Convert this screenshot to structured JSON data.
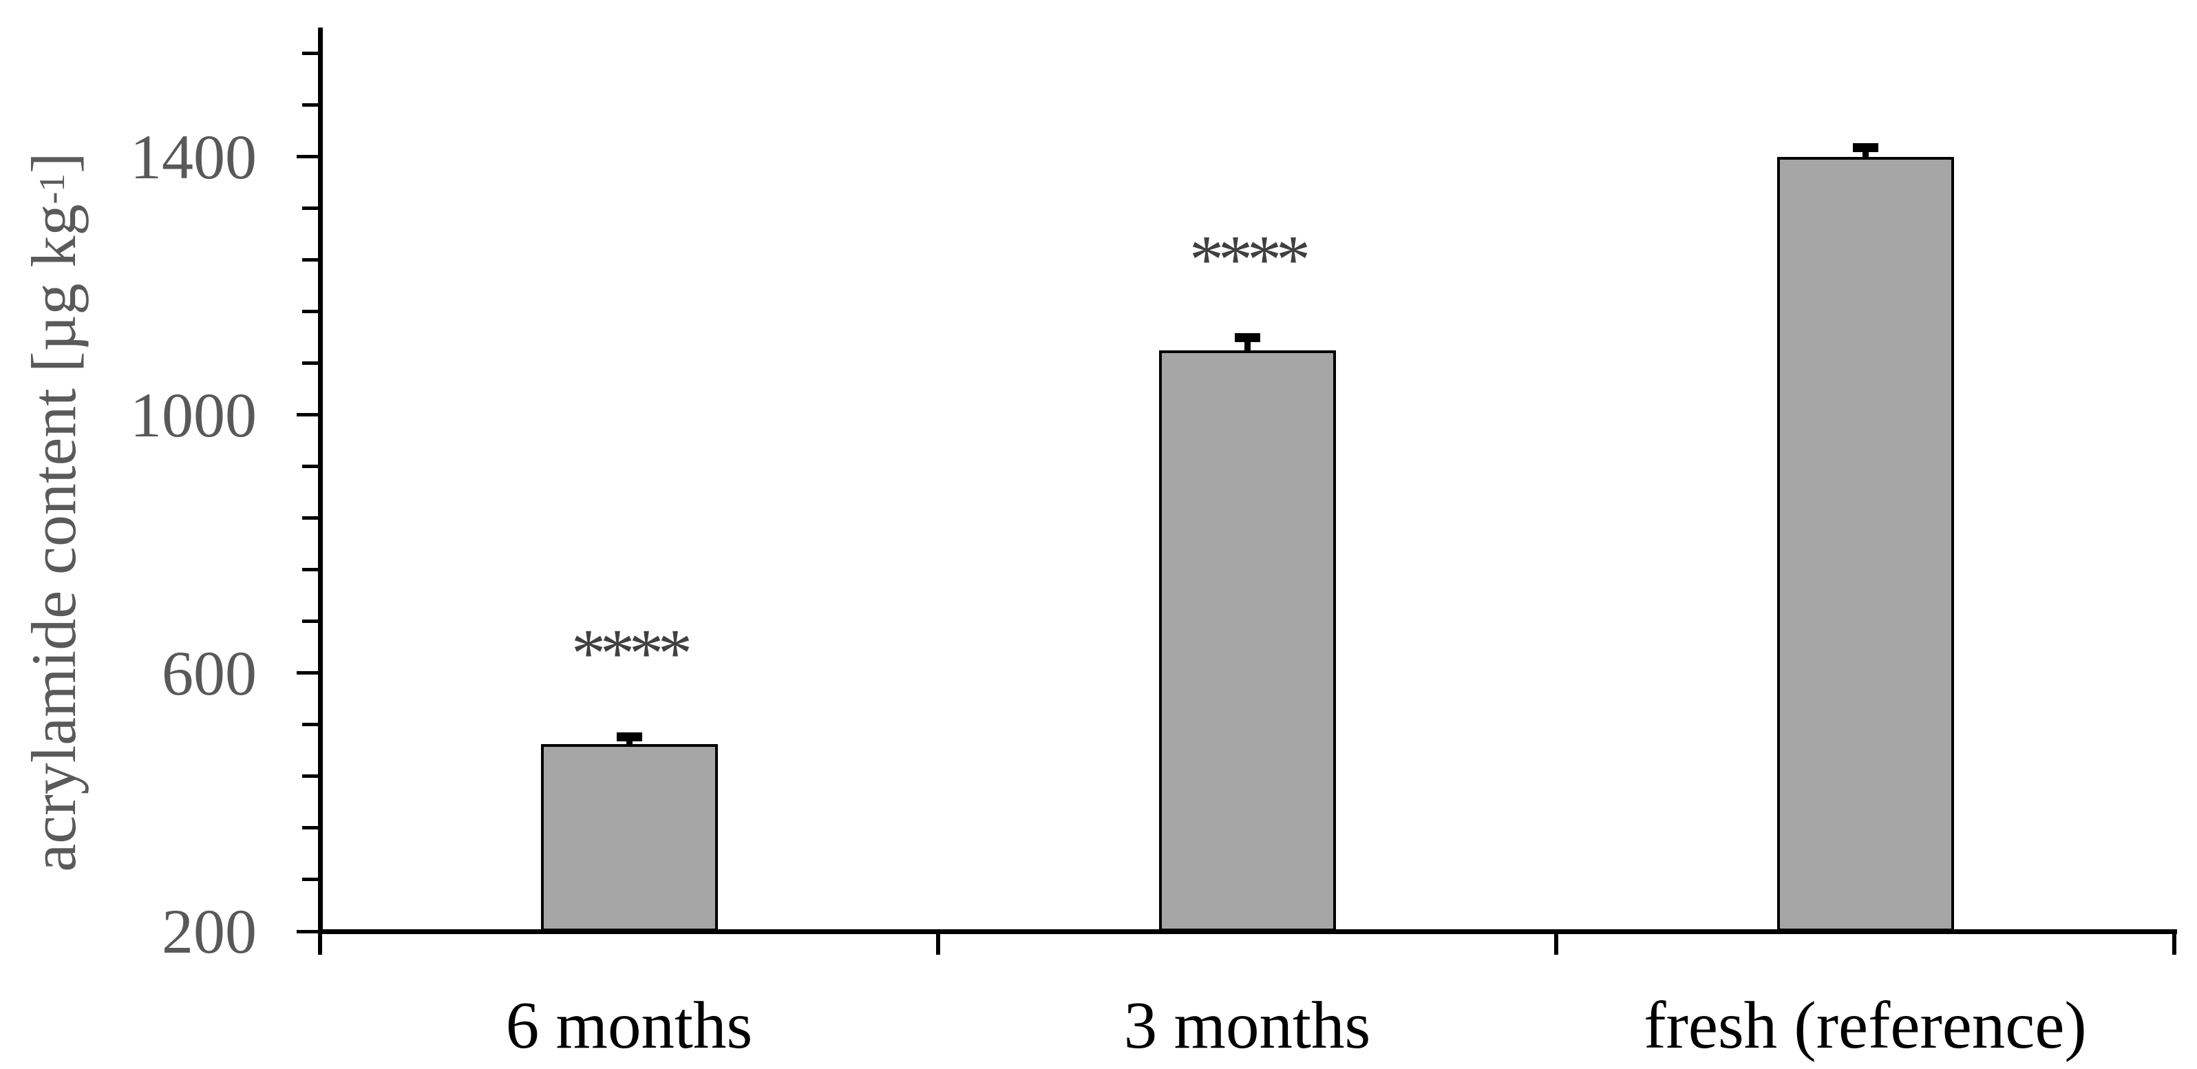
{
  "chart_data": {
    "type": "bar",
    "title": "",
    "categories": [
      "6 months",
      "3 months",
      "fresh (reference)"
    ],
    "values": [
      490,
      1100,
      1400
    ],
    "errors_plus": [
      12,
      20,
      15
    ],
    "significance": [
      "****",
      "****",
      ""
    ],
    "ylabel": "acrylamide content [µg kg-1]",
    "ylabel_parts": {
      "prefix": "acrylamide content [µg kg",
      "superscript": "-1",
      "suffix": "]"
    },
    "xlabel": "",
    "ylim": [
      200,
      1600
    ],
    "y_major_ticks": [
      200,
      600,
      1000,
      1400
    ],
    "y_minor_step": 80,
    "grid": false,
    "legend": "none",
    "bar_units": "µg kg-1"
  },
  "colors": {
    "background": "#ffffff",
    "bar_fill": "#a6a6a6",
    "bar_border": "#000000",
    "axis": "#000000",
    "error_bar": "#000000",
    "y_tick_label": "#595959",
    "y_axis_title": "#5a5a5a",
    "x_tick_label": "#000000",
    "significance": "#404040"
  }
}
